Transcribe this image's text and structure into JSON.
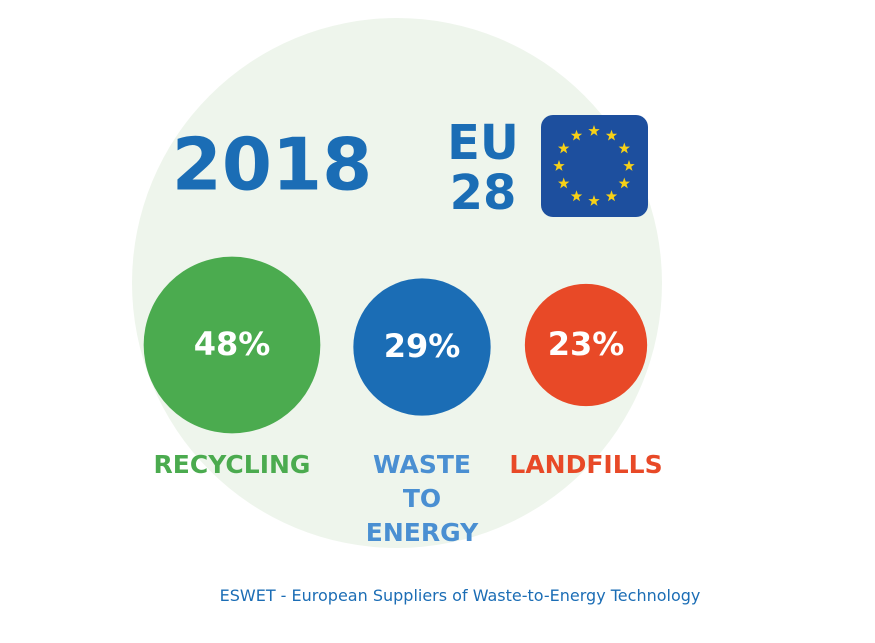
{
  "chart_data": {
    "type": "bubble",
    "title": "2018",
    "subtitle": "EU\n28",
    "categories": [
      "RECYCLING",
      "WASTE\nTO\nENERGY",
      "LANDFILLS"
    ],
    "values": [
      48,
      29,
      23
    ],
    "value_labels": [
      "48%",
      "29%",
      "23%"
    ],
    "colors": [
      "#4bab4f",
      "#1b6db5",
      "#e84927"
    ],
    "label_colors": [
      "#4bab4f",
      "#4a8fd2",
      "#e84927"
    ],
    "source": "ESWET - European Suppliers of Waste-to-Energy Technology"
  }
}
